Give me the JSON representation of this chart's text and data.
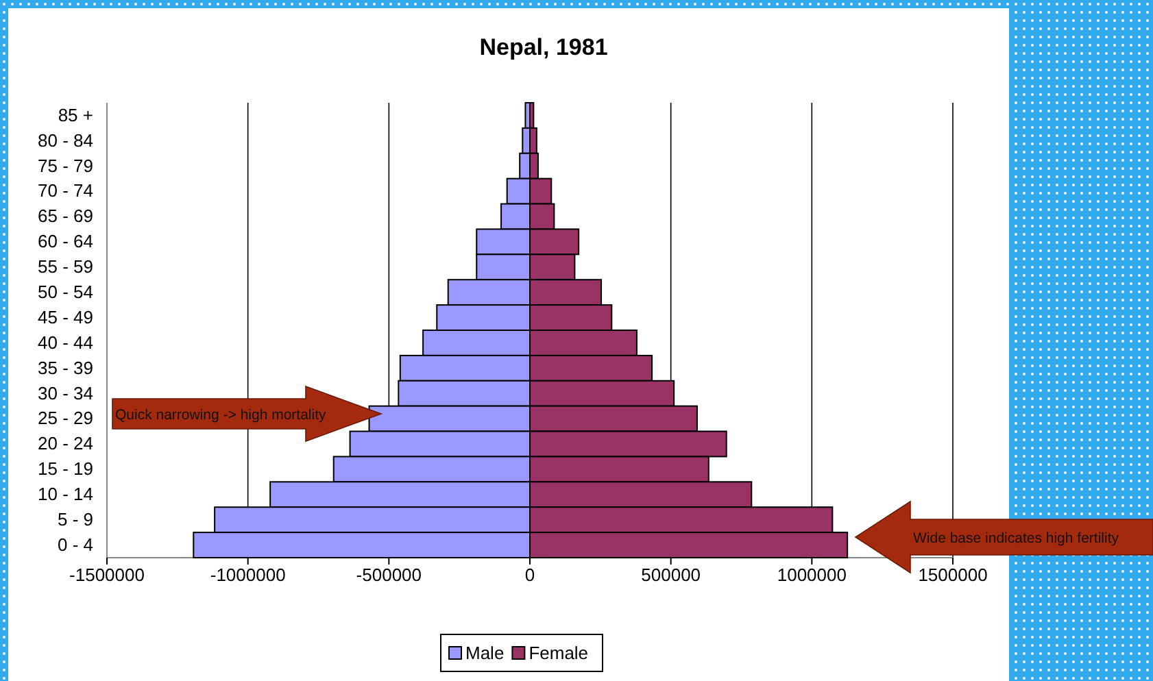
{
  "chart_data": {
    "type": "bar",
    "orientation": "horizontal",
    "stacked": true,
    "title": "Nepal, 1981",
    "categories": [
      "85 +",
      "80 - 84",
      "75 - 79",
      "70 - 74",
      "65 - 69",
      "60 - 64",
      "55 - 59",
      "50 - 54",
      "45 - 49",
      "40 - 44",
      "35 - 39",
      "30 - 34",
      "25 - 29",
      "20 - 24",
      "15 - 19",
      "10 - 14",
      "5 - 9",
      "0 - 4"
    ],
    "series": [
      {
        "name": "Male",
        "color": "#9999ff",
        "values": [
          -16000,
          -26000,
          -36000,
          -81000,
          -102000,
          -189000,
          -189000,
          -290000,
          -330000,
          -379000,
          -460000,
          -466000,
          -570000,
          -638000,
          -696000,
          -921000,
          -1118000,
          -1193000
        ]
      },
      {
        "name": "Female",
        "color": "#993366",
        "values": [
          13000,
          24000,
          29000,
          76000,
          86000,
          173000,
          159000,
          253000,
          290000,
          379000,
          433000,
          511000,
          593000,
          697000,
          634000,
          786000,
          1073000,
          1126000
        ]
      }
    ],
    "xlim": [
      -1500000,
      1500000
    ],
    "xticks": [
      -1500000,
      -1000000,
      -500000,
      0,
      500000,
      1000000,
      1500000
    ],
    "grid": "x",
    "legend": "bottom",
    "annotations": [
      "Quick narrowing -> high mortality",
      "Wide base indicates high fertility"
    ]
  }
}
